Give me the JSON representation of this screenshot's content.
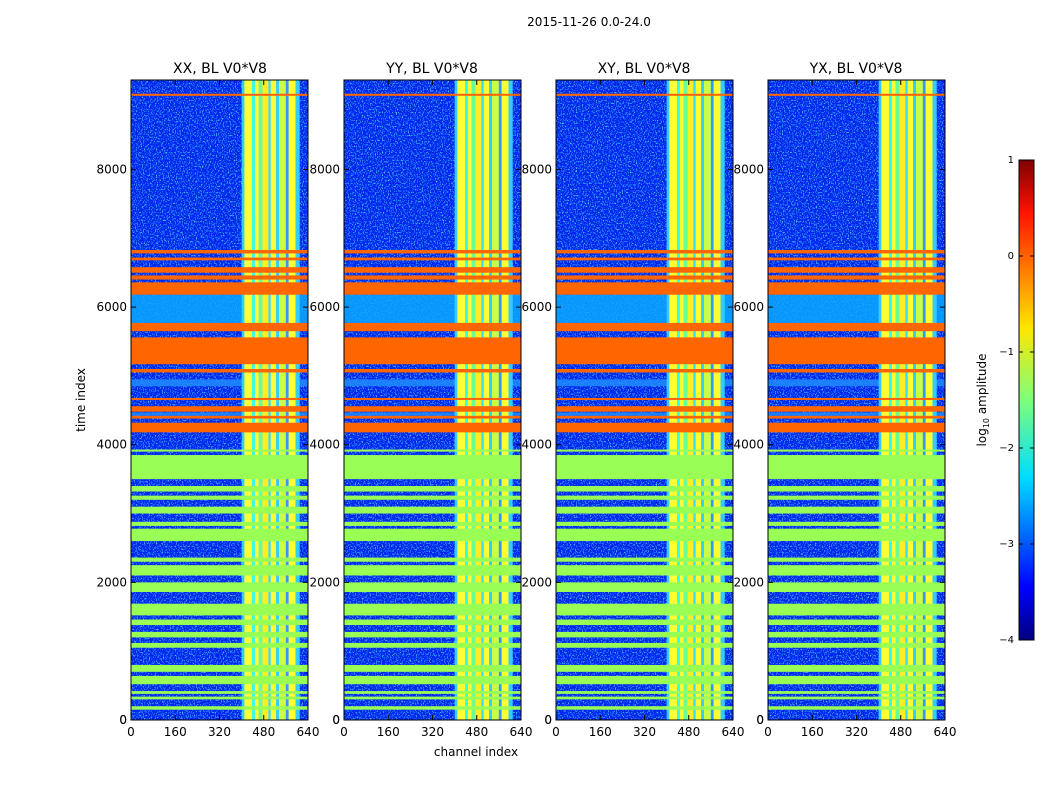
{
  "chart_data": {
    "type": "heatmap",
    "suptitle": "2015-11-26 0.0-24.0",
    "xlabel": "channel index",
    "ylabel": "time index",
    "xlim": [
      0,
      640
    ],
    "ylim": [
      0,
      9300
    ],
    "xticks": [
      0,
      160,
      320,
      480,
      640
    ],
    "yticks": [
      0,
      2000,
      4000,
      6000,
      8000
    ],
    "panels": [
      {
        "title": "XX, BL V0*V8"
      },
      {
        "title": "YY, BL V0*V8"
      },
      {
        "title": "XY, BL V0*V8"
      },
      {
        "title": "YX, BL V0*V8"
      }
    ],
    "colorbar": {
      "label": "log",
      "label_sub": "10",
      "label_suffix": " amplitude",
      "range": [
        -4,
        1
      ],
      "ticks": [
        1,
        0,
        -1,
        -2,
        -3,
        -4
      ],
      "colormap": "jet"
    },
    "band_channels": [
      400,
      610
    ],
    "band_columns": [
      [
        410,
        438,
        "#ffff33"
      ],
      [
        438,
        448,
        "#33ffee"
      ],
      [
        448,
        462,
        "#ffff33"
      ],
      [
        462,
        475,
        "#66ff99"
      ],
      [
        475,
        497,
        "#ffee22"
      ],
      [
        497,
        505,
        "#33ddff"
      ],
      [
        505,
        525,
        "#ffff33"
      ],
      [
        525,
        535,
        "#33ccff"
      ],
      [
        535,
        560,
        "#ccff44"
      ],
      [
        560,
        570,
        "#3399ff"
      ],
      [
        570,
        595,
        "#ffff33"
      ],
      [
        595,
        600,
        "#33ccff"
      ]
    ],
    "flag_rows": [
      {
        "start": 9070,
        "end": 9100,
        "color": "#ff6600"
      },
      {
        "start": 6780,
        "end": 6830,
        "color": "#ff6600"
      },
      {
        "start": 6680,
        "end": 6720,
        "color": "#ff6600"
      },
      {
        "start": 6500,
        "end": 6580,
        "color": "#ff6600"
      },
      {
        "start": 6400,
        "end": 6460,
        "color": "#ff6600"
      },
      {
        "start": 6180,
        "end": 6360,
        "color": "#ff6600"
      },
      {
        "start": 5650,
        "end": 5770,
        "color": "#ff6600"
      },
      {
        "start": 5170,
        "end": 5560,
        "color": "#ff6600"
      },
      {
        "start": 5050,
        "end": 5100,
        "color": "#ff6600"
      },
      {
        "start": 4650,
        "end": 4680,
        "color": "#ff6600"
      },
      {
        "start": 4480,
        "end": 4560,
        "color": "#ff6600"
      },
      {
        "start": 4380,
        "end": 4420,
        "color": "#ff6600"
      },
      {
        "start": 4180,
        "end": 4320,
        "color": "#ff6600"
      },
      {
        "start": 3900,
        "end": 3930,
        "color": "#99ff55"
      },
      {
        "start": 3500,
        "end": 3850,
        "color": "#99ff55"
      },
      {
        "start": 3320,
        "end": 3400,
        "color": "#99ff55"
      },
      {
        "start": 3200,
        "end": 3260,
        "color": "#99ff55"
      },
      {
        "start": 3000,
        "end": 3100,
        "color": "#99ff55"
      },
      {
        "start": 2820,
        "end": 2880,
        "color": "#99ff55"
      },
      {
        "start": 2600,
        "end": 2780,
        "color": "#99ff55"
      },
      {
        "start": 2300,
        "end": 2360,
        "color": "#99ff55"
      },
      {
        "start": 2100,
        "end": 2250,
        "color": "#99ff55"
      },
      {
        "start": 1860,
        "end": 2000,
        "color": "#99ff55"
      },
      {
        "start": 1520,
        "end": 1690,
        "color": "#99ff55"
      },
      {
        "start": 1380,
        "end": 1460,
        "color": "#99ff55"
      },
      {
        "start": 1200,
        "end": 1280,
        "color": "#99ff55"
      },
      {
        "start": 1050,
        "end": 1120,
        "color": "#99ff55"
      },
      {
        "start": 700,
        "end": 800,
        "color": "#99ff55"
      },
      {
        "start": 520,
        "end": 640,
        "color": "#99ff55"
      },
      {
        "start": 380,
        "end": 420,
        "color": "#99ff55"
      },
      {
        "start": 300,
        "end": 340,
        "color": "#99ff55"
      },
      {
        "start": 150,
        "end": 200,
        "color": "#99ff55"
      }
    ],
    "light_rows": [
      {
        "start": 5770,
        "end": 6180,
        "color": "#0aa8ff"
      },
      {
        "start": 4420,
        "end": 4470,
        "color": "#1e8cff"
      },
      {
        "start": 4850,
        "end": 4950,
        "color": "#1e8cff"
      }
    ]
  }
}
